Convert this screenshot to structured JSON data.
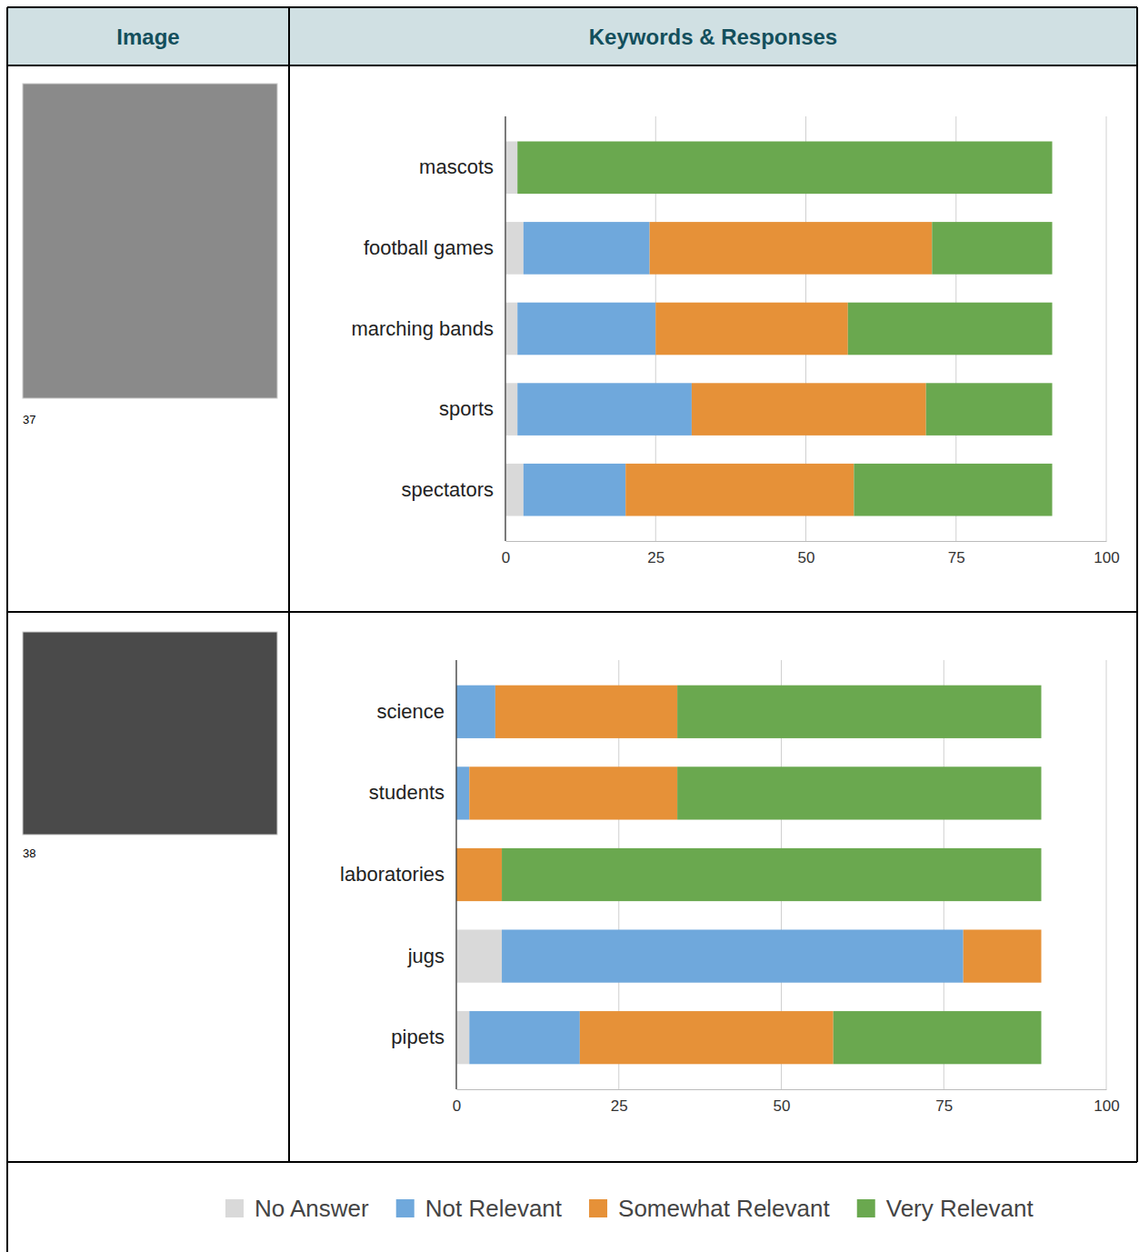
{
  "header": [
    "Image",
    "Keywords & Responses"
  ],
  "captions": [
    "37",
    "38"
  ],
  "chart_data": [
    {
      "type": "bar",
      "orientation": "horizontal",
      "stacked": true,
      "grid": true,
      "legend": "bottom",
      "categories": [
        "mascots",
        "football games",
        "marching bands",
        "sports",
        "spectators"
      ],
      "xlim": [
        0,
        100
      ],
      "xticks": [
        0,
        25,
        50,
        75,
        100
      ],
      "series": [
        {
          "name": "No Answer",
          "color": "#d9d9d9",
          "values": [
            2,
            3,
            2,
            2,
            3
          ]
        },
        {
          "name": "Not Relevant",
          "color": "#6fa8dc",
          "values": [
            0,
            21,
            23,
            29,
            17
          ]
        },
        {
          "name": "Somewhat Relevant",
          "color": "#e69138",
          "values": [
            0,
            47,
            32,
            39,
            38
          ]
        },
        {
          "name": "Very Relevant",
          "color": "#6aa84f",
          "values": [
            89,
            20,
            34,
            21,
            33
          ]
        }
      ]
    },
    {
      "type": "bar",
      "orientation": "horizontal",
      "stacked": true,
      "grid": true,
      "categories": [
        "science",
        "students",
        "laboratories",
        "jugs",
        "pipets"
      ],
      "xlim": [
        0,
        100
      ],
      "xticks": [
        0,
        25,
        50,
        75,
        100
      ],
      "series": [
        {
          "name": "No Answer",
          "color": "#d9d9d9",
          "values": [
            0,
            0,
            0,
            7,
            2
          ]
        },
        {
          "name": "Not Relevant",
          "color": "#6fa8dc",
          "values": [
            6,
            2,
            0,
            71,
            17
          ]
        },
        {
          "name": "Somewhat Relevant",
          "color": "#e69138",
          "values": [
            28,
            32,
            7,
            12,
            39
          ]
        },
        {
          "name": "Very Relevant",
          "color": "#6aa84f",
          "values": [
            56,
            56,
            83,
            0,
            32
          ]
        }
      ]
    }
  ]
}
